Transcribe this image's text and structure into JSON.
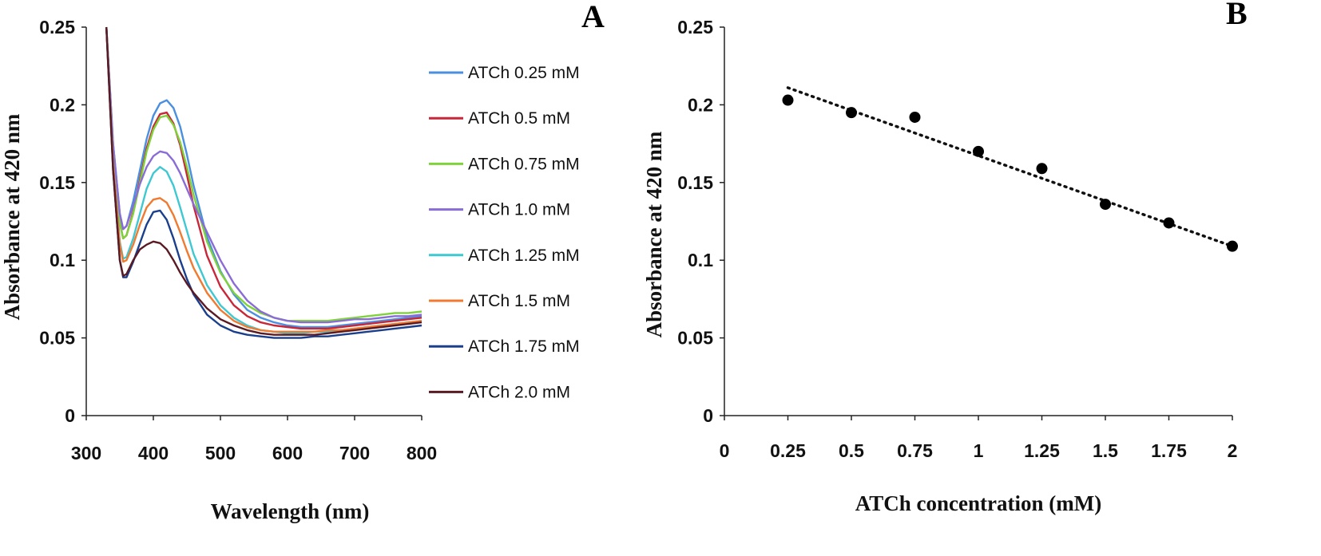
{
  "chart_data": [
    {
      "panel": "A",
      "type": "line",
      "xlabel": "Wavelength (nm)",
      "ylabel": "Absorbance at 420 nm",
      "xlim": [
        300,
        800
      ],
      "ylim": [
        0,
        0.25
      ],
      "xticks": [
        "300",
        "400",
        "500",
        "600",
        "700",
        "800"
      ],
      "yticks": [
        "0",
        "0.05",
        "0.1",
        "0.15",
        "0.2",
        "0.25"
      ],
      "legend_position": "right",
      "x": [
        330,
        340,
        350,
        355,
        360,
        370,
        380,
        390,
        400,
        410,
        420,
        430,
        440,
        450,
        460,
        480,
        500,
        520,
        540,
        560,
        580,
        600,
        620,
        640,
        660,
        680,
        700,
        720,
        740,
        760,
        780,
        800
      ],
      "series": [
        {
          "name": "ATCh 0.25 mM",
          "color": "#4a8fe0",
          "values": [
            0.25,
            0.175,
            0.13,
            0.12,
            0.122,
            0.138,
            0.158,
            0.178,
            0.193,
            0.201,
            0.203,
            0.198,
            0.186,
            0.168,
            0.148,
            0.115,
            0.093,
            0.078,
            0.068,
            0.063,
            0.06,
            0.058,
            0.057,
            0.057,
            0.057,
            0.058,
            0.059,
            0.06,
            0.061,
            0.062,
            0.063,
            0.064
          ]
        },
        {
          "name": "ATCh 0.5 mM",
          "color": "#c8273a",
          "values": [
            0.25,
            0.172,
            0.124,
            0.114,
            0.116,
            0.131,
            0.152,
            0.172,
            0.186,
            0.194,
            0.195,
            0.188,
            0.174,
            0.155,
            0.135,
            0.103,
            0.083,
            0.071,
            0.064,
            0.06,
            0.058,
            0.057,
            0.056,
            0.056,
            0.056,
            0.057,
            0.058,
            0.059,
            0.06,
            0.061,
            0.062,
            0.063
          ]
        },
        {
          "name": "ATCh 0.75 mM",
          "color": "#7ed23a",
          "values": [
            0.25,
            0.172,
            0.124,
            0.114,
            0.116,
            0.13,
            0.15,
            0.17,
            0.184,
            0.192,
            0.193,
            0.187,
            0.176,
            0.16,
            0.142,
            0.112,
            0.092,
            0.079,
            0.071,
            0.066,
            0.063,
            0.061,
            0.061,
            0.061,
            0.061,
            0.062,
            0.063,
            0.064,
            0.065,
            0.066,
            0.066,
            0.067
          ]
        },
        {
          "name": "ATCh 1.0 mM",
          "color": "#8a6cd6",
          "values": [
            0.25,
            0.175,
            0.13,
            0.12,
            0.122,
            0.135,
            0.149,
            0.16,
            0.167,
            0.17,
            0.169,
            0.164,
            0.156,
            0.146,
            0.136,
            0.118,
            0.1,
            0.085,
            0.074,
            0.067,
            0.063,
            0.061,
            0.06,
            0.06,
            0.06,
            0.061,
            0.062,
            0.062,
            0.063,
            0.064,
            0.064,
            0.065
          ]
        },
        {
          "name": "ATCh 1.25 mM",
          "color": "#3ec8d2",
          "values": [
            0.25,
            0.165,
            0.112,
            0.101,
            0.102,
            0.114,
            0.13,
            0.146,
            0.156,
            0.16,
            0.157,
            0.148,
            0.134,
            0.119,
            0.104,
            0.084,
            0.071,
            0.063,
            0.058,
            0.055,
            0.054,
            0.053,
            0.053,
            0.054,
            0.054,
            0.055,
            0.056,
            0.057,
            0.058,
            0.059,
            0.06,
            0.061
          ]
        },
        {
          "name": "ATCh 1.5 mM",
          "color": "#f07a30",
          "values": [
            0.25,
            0.163,
            0.11,
            0.099,
            0.1,
            0.11,
            0.123,
            0.134,
            0.139,
            0.14,
            0.137,
            0.129,
            0.118,
            0.106,
            0.095,
            0.079,
            0.068,
            0.061,
            0.057,
            0.055,
            0.054,
            0.054,
            0.054,
            0.054,
            0.055,
            0.055,
            0.056,
            0.057,
            0.058,
            0.059,
            0.06,
            0.061
          ]
        },
        {
          "name": "ATCh 1.75 mM",
          "color": "#1a3f8c",
          "values": [
            0.25,
            0.158,
            0.1,
            0.089,
            0.089,
            0.099,
            0.111,
            0.123,
            0.131,
            0.132,
            0.126,
            0.114,
            0.1,
            0.088,
            0.078,
            0.065,
            0.058,
            0.054,
            0.052,
            0.051,
            0.05,
            0.05,
            0.05,
            0.051,
            0.051,
            0.052,
            0.053,
            0.054,
            0.055,
            0.056,
            0.057,
            0.058
          ]
        },
        {
          "name": "ATCh 2.0 mM",
          "color": "#5a1a24",
          "values": [
            0.25,
            0.158,
            0.1,
            0.09,
            0.091,
            0.1,
            0.107,
            0.11,
            0.112,
            0.111,
            0.107,
            0.1,
            0.092,
            0.085,
            0.079,
            0.069,
            0.062,
            0.058,
            0.055,
            0.053,
            0.052,
            0.052,
            0.052,
            0.052,
            0.053,
            0.054,
            0.055,
            0.056,
            0.057,
            0.058,
            0.059,
            0.06
          ]
        }
      ]
    },
    {
      "panel": "B",
      "type": "scatter",
      "xlabel": "ATCh concentration (mM)",
      "ylabel": "Absorbance at 420 nm",
      "xlim": [
        0,
        2
      ],
      "ylim": [
        0,
        0.25
      ],
      "xticks": [
        "0",
        "0.25",
        "0.5",
        "0.75",
        "1",
        "1.25",
        "1.5",
        "1.75",
        "2"
      ],
      "yticks": [
        "0",
        "0.05",
        "0.1",
        "0.15",
        "0.2",
        "0.25"
      ],
      "x": [
        0.25,
        0.5,
        0.75,
        1.0,
        1.25,
        1.5,
        1.75,
        2.0
      ],
      "y": [
        0.203,
        0.195,
        0.192,
        0.17,
        0.159,
        0.136,
        0.124,
        0.109
      ],
      "trendline": {
        "style": "dotted",
        "x": [
          0.25,
          2.0
        ],
        "y": [
          0.211,
          0.109
        ]
      }
    }
  ]
}
